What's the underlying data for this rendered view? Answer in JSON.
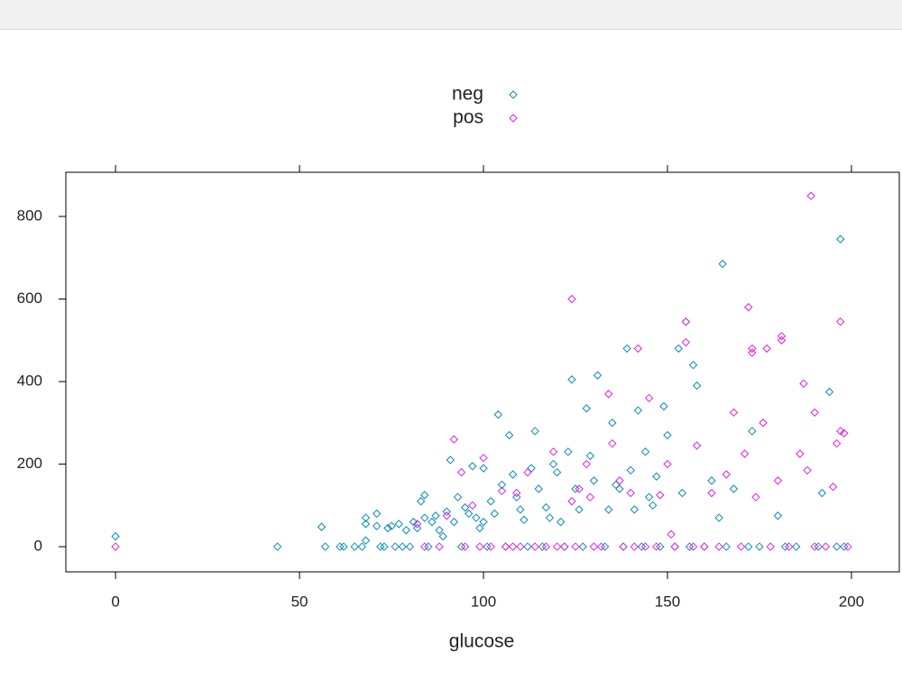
{
  "chart_data": {
    "type": "scatter",
    "xlabel": "glucose",
    "xlim": [
      -13.5,
      213
    ],
    "ylim": [
      -61,
      907
    ],
    "xticks": [
      0,
      50,
      100,
      150,
      200
    ],
    "yticks": [
      0,
      200,
      400,
      600,
      800
    ],
    "legend": "top",
    "series": [
      {
        "name": "neg",
        "color": "#0a8ab8",
        "x": [
          0,
          44,
          56,
          57,
          61,
          62,
          65,
          67,
          68,
          68,
          68,
          71,
          71,
          72,
          73,
          74,
          75,
          76,
          77,
          78,
          79,
          80,
          81,
          82,
          83,
          84,
          84,
          85,
          86,
          87,
          88,
          89,
          90,
          91,
          92,
          93,
          94,
          95,
          96,
          97,
          98,
          99,
          100,
          100,
          101,
          102,
          103,
          104,
          105,
          106,
          107,
          108,
          109,
          110,
          111,
          112,
          113,
          114,
          115,
          116,
          117,
          118,
          119,
          120,
          121,
          122,
          123,
          124,
          125,
          126,
          127,
          128,
          129,
          130,
          131,
          133,
          134,
          135,
          136,
          137,
          138,
          139,
          140,
          141,
          142,
          143,
          144,
          145,
          146,
          147,
          148,
          149,
          150,
          152,
          153,
          154,
          155,
          156,
          157,
          158,
          160,
          162,
          164,
          165,
          166,
          168,
          172,
          173,
          175,
          180,
          182,
          185,
          191,
          192,
          194,
          196,
          197,
          198
        ],
        "values": [
          25,
          0,
          48,
          0,
          0,
          0,
          0,
          0,
          15,
          55,
          70,
          50,
          80,
          0,
          0,
          45,
          50,
          0,
          55,
          0,
          40,
          0,
          60,
          45,
          110,
          125,
          70,
          0,
          60,
          75,
          40,
          25,
          85,
          210,
          60,
          120,
          0,
          95,
          80,
          195,
          70,
          45,
          60,
          190,
          0,
          110,
          80,
          320,
          150,
          0,
          270,
          175,
          120,
          90,
          65,
          0,
          190,
          280,
          140,
          0,
          95,
          70,
          200,
          180,
          60,
          0,
          230,
          405,
          140,
          90,
          0,
          335,
          220,
          160,
          415,
          0,
          90,
          300,
          150,
          140,
          0,
          480,
          185,
          90,
          330,
          0,
          230,
          120,
          100,
          170,
          0,
          340,
          270,
          0,
          480,
          130,
          545,
          0,
          440,
          390,
          0,
          160,
          70,
          685,
          0,
          140,
          0,
          280,
          0,
          75,
          0,
          0,
          0,
          130,
          375,
          0,
          745,
          0
        ]
      },
      {
        "name": "pos",
        "color": "#e020e0",
        "x": [
          0,
          82,
          84,
          88,
          90,
          92,
          94,
          95,
          97,
          99,
          100,
          102,
          105,
          106,
          108,
          109,
          110,
          112,
          114,
          117,
          119,
          120,
          122,
          124,
          124,
          125,
          126,
          128,
          129,
          130,
          132,
          134,
          135,
          137,
          138,
          140,
          141,
          142,
          144,
          145,
          147,
          148,
          150,
          151,
          152,
          155,
          155,
          157,
          158,
          160,
          162,
          164,
          166,
          168,
          170,
          171,
          172,
          173,
          173,
          174,
          176,
          177,
          178,
          180,
          181,
          181,
          183,
          186,
          187,
          188,
          189,
          190,
          190,
          193,
          195,
          196,
          197,
          197,
          198,
          199
        ],
        "values": [
          0,
          55,
          0,
          0,
          75,
          260,
          180,
          0,
          100,
          0,
          215,
          0,
          135,
          0,
          0,
          130,
          0,
          180,
          0,
          0,
          230,
          0,
          0,
          600,
          110,
          0,
          140,
          200,
          120,
          0,
          0,
          370,
          250,
          160,
          0,
          130,
          0,
          480,
          0,
          360,
          0,
          125,
          200,
          30,
          0,
          495,
          545,
          0,
          245,
          0,
          130,
          0,
          175,
          325,
          0,
          225,
          580,
          480,
          470,
          120,
          300,
          480,
          0,
          160,
          500,
          510,
          0,
          225,
          395,
          185,
          850,
          325,
          0,
          0,
          145,
          250,
          545,
          280,
          275,
          0
        ]
      }
    ]
  }
}
